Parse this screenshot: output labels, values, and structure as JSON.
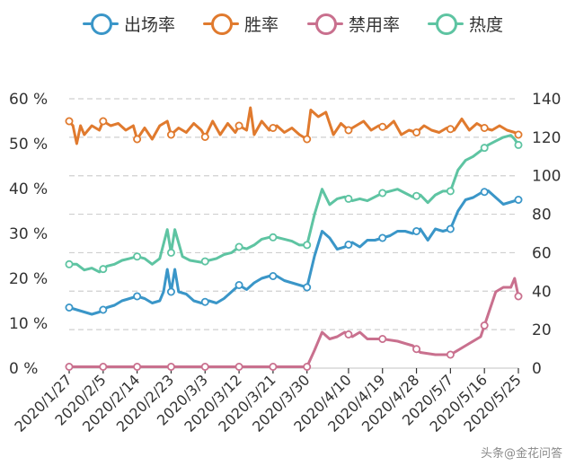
{
  "chart_data": {
    "type": "line",
    "title": "",
    "xlabel": "",
    "ylabel": "",
    "y_left": {
      "ticks": [
        "0 %",
        "10 %",
        "20 %",
        "30 %",
        "40 %",
        "50 %",
        "60 %"
      ],
      "ylim": [
        0,
        60
      ],
      "unit": "%"
    },
    "y_right": {
      "ticks": [
        "0",
        "20",
        "40",
        "60",
        "80",
        "100",
        "120",
        "140"
      ],
      "ylim": [
        0,
        140
      ]
    },
    "grid": true,
    "legend_position": "top",
    "x_start": "2020/1/27",
    "x_end": "2020/5/25",
    "x_ticks": [
      "2020/1/27",
      "2020/2/5",
      "2020/2/14",
      "2020/2/23",
      "2020/3/3",
      "2020/3/12",
      "2020/3/21",
      "2020/3/30",
      "2020/4/10",
      "2020/4/19",
      "2020/4/28",
      "2020/5/7",
      "2020/5/16",
      "2020/5/25"
    ],
    "series": [
      {
        "name": "出场率",
        "axis": "left",
        "color": "#3a96c8",
        "points": [
          [
            "2020/1/27",
            13.5
          ],
          [
            "2020/1/29",
            13.0
          ],
          [
            "2020/1/31",
            12.5
          ],
          [
            "2020/2/2",
            12.0
          ],
          [
            "2020/2/4",
            12.5
          ],
          [
            "2020/2/6",
            13.5
          ],
          [
            "2020/2/8",
            14.0
          ],
          [
            "2020/2/10",
            15.0
          ],
          [
            "2020/2/12",
            15.5
          ],
          [
            "2020/2/14",
            16.0
          ],
          [
            "2020/2/16",
            15.5
          ],
          [
            "2020/2/18",
            14.5
          ],
          [
            "2020/2/20",
            15.0
          ],
          [
            "2020/2/21",
            17.0
          ],
          [
            "2020/2/22",
            22.0
          ],
          [
            "2020/2/23",
            17.0
          ],
          [
            "2020/2/24",
            22.0
          ],
          [
            "2020/2/25",
            17.0
          ],
          [
            "2020/2/27",
            16.5
          ],
          [
            "2020/2/29",
            15.0
          ],
          [
            "2020/3/2",
            14.5
          ],
          [
            "2020/3/4",
            15.0
          ],
          [
            "2020/3/6",
            14.5
          ],
          [
            "2020/3/8",
            15.5
          ],
          [
            "2020/3/10",
            17.0
          ],
          [
            "2020/3/12",
            18.5
          ],
          [
            "2020/3/14",
            17.5
          ],
          [
            "2020/3/16",
            19.0
          ],
          [
            "2020/3/18",
            20.0
          ],
          [
            "2020/3/20",
            20.5
          ],
          [
            "2020/3/22",
            20.5
          ],
          [
            "2020/3/24",
            19.5
          ],
          [
            "2020/3/26",
            19.0
          ],
          [
            "2020/3/28",
            18.5
          ],
          [
            "2020/3/30",
            18.0
          ],
          [
            "2020/4/1",
            25.0
          ],
          [
            "2020/4/3",
            30.5
          ],
          [
            "2020/4/5",
            29.0
          ],
          [
            "2020/4/7",
            26.5
          ],
          [
            "2020/4/9",
            27.0
          ],
          [
            "2020/4/11",
            28.0
          ],
          [
            "2020/4/13",
            27.0
          ],
          [
            "2020/4/15",
            28.5
          ],
          [
            "2020/4/17",
            28.5
          ],
          [
            "2020/4/19",
            29.0
          ],
          [
            "2020/4/21",
            29.5
          ],
          [
            "2020/4/23",
            30.5
          ],
          [
            "2020/4/25",
            30.5
          ],
          [
            "2020/4/27",
            30.0
          ],
          [
            "2020/4/29",
            31.0
          ],
          [
            "2020/5/1",
            28.5
          ],
          [
            "2020/5/3",
            31.0
          ],
          [
            "2020/5/5",
            30.5
          ],
          [
            "2020/5/7",
            31.0
          ],
          [
            "2020/5/9",
            35.0
          ],
          [
            "2020/5/11",
            37.5
          ],
          [
            "2020/5/13",
            38.0
          ],
          [
            "2020/5/15",
            39.0
          ],
          [
            "2020/5/17",
            39.5
          ],
          [
            "2020/5/19",
            38.0
          ],
          [
            "2020/5/21",
            36.5
          ],
          [
            "2020/5/23",
            37.0
          ],
          [
            "2020/5/25",
            37.5
          ]
        ]
      },
      {
        "name": "胜率",
        "axis": "left",
        "color": "#e07a2e",
        "points": [
          [
            "2020/1/27",
            55.0
          ],
          [
            "2020/1/28",
            54.0
          ],
          [
            "2020/1/29",
            50.0
          ],
          [
            "2020/1/30",
            54.0
          ],
          [
            "2020/1/31",
            52.0
          ],
          [
            "2020/2/2",
            54.0
          ],
          [
            "2020/2/4",
            53.0
          ],
          [
            "2020/2/5",
            55.0
          ],
          [
            "2020/2/7",
            54.0
          ],
          [
            "2020/2/9",
            54.5
          ],
          [
            "2020/2/11",
            53.0
          ],
          [
            "2020/2/13",
            54.0
          ],
          [
            "2020/2/14",
            51.0
          ],
          [
            "2020/2/16",
            53.5
          ],
          [
            "2020/2/18",
            51.0
          ],
          [
            "2020/2/20",
            54.0
          ],
          [
            "2020/2/22",
            55.0
          ],
          [
            "2020/2/23",
            52.0
          ],
          [
            "2020/2/25",
            53.5
          ],
          [
            "2020/2/27",
            52.5
          ],
          [
            "2020/2/29",
            54.5
          ],
          [
            "2020/3/2",
            53.0
          ],
          [
            "2020/3/3",
            51.5
          ],
          [
            "2020/3/5",
            55.0
          ],
          [
            "2020/3/7",
            52.0
          ],
          [
            "2020/3/9",
            54.5
          ],
          [
            "2020/3/11",
            52.5
          ],
          [
            "2020/3/12",
            54.0
          ],
          [
            "2020/3/14",
            53.0
          ],
          [
            "2020/3/15",
            58.0
          ],
          [
            "2020/3/16",
            52.0
          ],
          [
            "2020/3/18",
            55.0
          ],
          [
            "2020/3/20",
            53.0
          ],
          [
            "2020/3/22",
            54.0
          ],
          [
            "2020/3/24",
            52.5
          ],
          [
            "2020/3/26",
            53.5
          ],
          [
            "2020/3/28",
            52.0
          ],
          [
            "2020/3/30",
            51.0
          ],
          [
            "2020/3/31",
            57.5
          ],
          [
            "2020/4/2",
            56.0
          ],
          [
            "2020/4/4",
            57.0
          ],
          [
            "2020/4/6",
            52.0
          ],
          [
            "2020/4/8",
            54.5
          ],
          [
            "2020/4/10",
            53.0
          ],
          [
            "2020/4/12",
            54.0
          ],
          [
            "2020/4/14",
            55.0
          ],
          [
            "2020/4/16",
            53.0
          ],
          [
            "2020/4/18",
            54.0
          ],
          [
            "2020/4/20",
            53.5
          ],
          [
            "2020/4/22",
            55.0
          ],
          [
            "2020/4/24",
            52.0
          ],
          [
            "2020/4/26",
            53.0
          ],
          [
            "2020/4/28",
            52.5
          ],
          [
            "2020/4/30",
            54.0
          ],
          [
            "2020/5/2",
            53.0
          ],
          [
            "2020/5/4",
            52.5
          ],
          [
            "2020/5/6",
            53.5
          ],
          [
            "2020/5/8",
            53.0
          ],
          [
            "2020/5/10",
            55.5
          ],
          [
            "2020/5/12",
            53.0
          ],
          [
            "2020/5/14",
            54.5
          ],
          [
            "2020/5/16",
            53.5
          ],
          [
            "2020/5/18",
            53.0
          ],
          [
            "2020/5/20",
            54.0
          ],
          [
            "2020/5/22",
            53.0
          ],
          [
            "2020/5/24",
            52.5
          ],
          [
            "2020/5/25",
            52.0
          ]
        ]
      },
      {
        "name": "禁用率",
        "axis": "left",
        "color": "#c9708e",
        "points": [
          [
            "2020/1/27",
            0.3
          ],
          [
            "2020/2/14",
            0.3
          ],
          [
            "2020/3/3",
            0.3
          ],
          [
            "2020/3/30",
            0.3
          ],
          [
            "2020/4/1",
            4.0
          ],
          [
            "2020/4/3",
            8.0
          ],
          [
            "2020/4/5",
            6.5
          ],
          [
            "2020/4/7",
            7.0
          ],
          [
            "2020/4/9",
            8.0
          ],
          [
            "2020/4/11",
            7.0
          ],
          [
            "2020/4/13",
            8.0
          ],
          [
            "2020/4/15",
            6.5
          ],
          [
            "2020/4/19",
            6.5
          ],
          [
            "2020/4/23",
            6.0
          ],
          [
            "2020/4/27",
            5.0
          ],
          [
            "2020/4/29",
            3.5
          ],
          [
            "2020/5/3",
            3.0
          ],
          [
            "2020/5/7",
            3.0
          ],
          [
            "2020/5/11",
            5.0
          ],
          [
            "2020/5/15",
            7.0
          ],
          [
            "2020/5/17",
            12.0
          ],
          [
            "2020/5/19",
            17.0
          ],
          [
            "2020/5/21",
            18.0
          ],
          [
            "2020/5/23",
            18.0
          ],
          [
            "2020/5/24",
            20.0
          ],
          [
            "2020/5/25",
            16.0
          ]
        ]
      },
      {
        "name": "热度",
        "axis": "right",
        "color": "#5ec4a2",
        "points": [
          [
            "2020/1/27",
            54
          ],
          [
            "2020/1/29",
            54
          ],
          [
            "2020/1/31",
            51
          ],
          [
            "2020/2/2",
            52
          ],
          [
            "2020/2/4",
            50
          ],
          [
            "2020/2/6",
            53
          ],
          [
            "2020/2/8",
            54
          ],
          [
            "2020/2/10",
            56
          ],
          [
            "2020/2/12",
            57
          ],
          [
            "2020/2/14",
            58
          ],
          [
            "2020/2/16",
            57
          ],
          [
            "2020/2/18",
            54
          ],
          [
            "2020/2/20",
            57
          ],
          [
            "2020/2/22",
            72
          ],
          [
            "2020/2/23",
            60
          ],
          [
            "2020/2/24",
            72
          ],
          [
            "2020/2/26",
            58
          ],
          [
            "2020/2/28",
            56
          ],
          [
            "2020/3/2",
            55
          ],
          [
            "2020/3/4",
            56
          ],
          [
            "2020/3/6",
            57
          ],
          [
            "2020/3/8",
            59
          ],
          [
            "2020/3/10",
            60
          ],
          [
            "2020/3/12",
            63
          ],
          [
            "2020/3/14",
            62
          ],
          [
            "2020/3/16",
            64
          ],
          [
            "2020/3/18",
            67
          ],
          [
            "2020/3/20",
            68
          ],
          [
            "2020/3/22",
            68
          ],
          [
            "2020/3/24",
            67
          ],
          [
            "2020/3/26",
            66
          ],
          [
            "2020/3/28",
            64
          ],
          [
            "2020/3/30",
            64
          ],
          [
            "2020/4/1",
            80
          ],
          [
            "2020/4/3",
            93
          ],
          [
            "2020/4/5",
            85
          ],
          [
            "2020/4/7",
            88
          ],
          [
            "2020/4/9",
            89
          ],
          [
            "2020/4/11",
            87
          ],
          [
            "2020/4/13",
            88
          ],
          [
            "2020/4/15",
            87
          ],
          [
            "2020/4/17",
            89
          ],
          [
            "2020/4/19",
            91
          ],
          [
            "2020/4/21",
            92
          ],
          [
            "2020/4/23",
            93
          ],
          [
            "2020/4/25",
            91
          ],
          [
            "2020/4/27",
            89
          ],
          [
            "2020/4/29",
            90
          ],
          [
            "2020/5/1",
            86
          ],
          [
            "2020/5/3",
            90
          ],
          [
            "2020/5/5",
            92
          ],
          [
            "2020/5/7",
            92
          ],
          [
            "2020/5/9",
            103
          ],
          [
            "2020/5/11",
            108
          ],
          [
            "2020/5/13",
            110
          ],
          [
            "2020/5/15",
            113
          ],
          [
            "2020/5/17",
            116
          ],
          [
            "2020/5/19",
            118
          ],
          [
            "2020/5/21",
            120
          ],
          [
            "2020/5/23",
            121
          ],
          [
            "2020/5/24",
            119
          ],
          [
            "2020/5/25",
            116
          ]
        ]
      }
    ]
  },
  "watermark": "头条@金花问答"
}
